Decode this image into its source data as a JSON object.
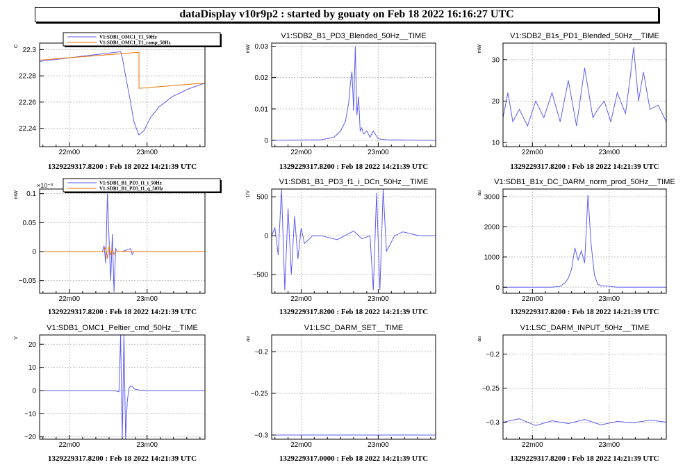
{
  "title": "dataDisplay v10r9p2 : started by gouaty on Feb 18 2022 16:16:27 UTC",
  "colors": {
    "blue": "#5b5bf0",
    "orange": "#f07000",
    "grid": "#bdbdbd"
  },
  "chart_data": [
    {
      "type": "line",
      "title": "",
      "ylabel": "C",
      "footer": "1329229317.8200 : Feb 18 2022 14:21:39 UTC",
      "xticks": [
        "22m00",
        "23m00"
      ],
      "ylim": [
        22.226,
        22.305
      ],
      "yticks": [
        22.24,
        22.26,
        22.28,
        22.3
      ],
      "ytick_labels": [
        "22.24",
        "22.26",
        "22.28",
        "22.3"
      ],
      "legend": [
        "V1:SDB1_OMC1_T1_50Hz",
        "V1:SDB1_OMC1_T1_ramp_50Hz"
      ],
      "series": [
        {
          "name": "V1:SDB1_OMC1_T1_50Hz",
          "color": "blue",
          "x": [
            0,
            0.49,
            0.5,
            0.52,
            0.55,
            0.57,
            0.6,
            0.63,
            0.67,
            0.72,
            0.8,
            0.9,
            1
          ],
          "y": [
            22.291,
            22.2985,
            22.294,
            22.28,
            22.26,
            22.245,
            22.235,
            22.238,
            22.248,
            22.256,
            22.264,
            22.27,
            22.2745
          ]
        },
        {
          "name": "V1:SDB1_OMC1_T1_ramp_50Hz",
          "color": "orange",
          "x": [
            0,
            0.6,
            0.601,
            0.6011,
            1
          ],
          "y": [
            22.292,
            22.298,
            22.298,
            22.2705,
            22.2745
          ]
        }
      ]
    },
    {
      "type": "line",
      "title": "V1:SDB2_B1_PD3_Blended_50Hz__TIME",
      "ylabel": "mW",
      "footer": "1329229317.8200 : Feb 18 2022 14:21:39 UTC",
      "xticks": [
        "22m00",
        "23m00"
      ],
      "ylim": [
        -0.002,
        0.031
      ],
      "yticks": [
        0,
        0.01,
        0.02,
        0.03
      ],
      "ytick_labels": [
        "0",
        "0.01",
        "0.02",
        "0.03"
      ],
      "series": [
        {
          "name": "",
          "color": "blue",
          "x": [
            0,
            0.3,
            0.38,
            0.42,
            0.45,
            0.47,
            0.48,
            0.49,
            0.5,
            0.51,
            0.52,
            0.53,
            0.54,
            0.55,
            0.56,
            0.58,
            0.6,
            0.62,
            0.65,
            0.7,
            1
          ],
          "y": [
            0,
            0.0002,
            0.001,
            0.003,
            0.006,
            0.012,
            0.018,
            0.022,
            0.0095,
            0.03,
            0.008,
            0.014,
            0.003,
            0.004,
            0.002,
            0.003,
            0.001,
            0.003,
            0.0005,
            0.0002,
            0
          ]
        }
      ]
    },
    {
      "type": "line",
      "title": "V1:SDB2_B1s_PD1_Blended_50Hz__TIME",
      "ylabel": "mW",
      "footer": "1329229317.8200 : Feb 18 2022 14:21:39 UTC",
      "xticks": [
        "22m00",
        "23m00"
      ],
      "ylim": [
        9,
        34
      ],
      "yticks": [
        10,
        20,
        30
      ],
      "ytick_labels": [
        "10",
        "20",
        "30"
      ],
      "series": [
        {
          "name": "",
          "color": "blue",
          "x": [
            0,
            0.03,
            0.06,
            0.1,
            0.15,
            0.2,
            0.25,
            0.3,
            0.35,
            0.4,
            0.45,
            0.5,
            0.55,
            0.58,
            0.62,
            0.66,
            0.7,
            0.75,
            0.78,
            0.8,
            0.83,
            0.86,
            0.9,
            0.95,
            1
          ],
          "y": [
            16,
            22,
            15,
            18,
            14,
            20,
            16,
            22,
            15,
            25,
            14,
            28,
            16,
            18,
            20,
            15,
            22,
            17,
            26,
            33,
            20,
            27,
            18,
            19,
            15
          ]
        }
      ]
    },
    {
      "type": "line",
      "title": "",
      "ylabel": "mW",
      "yexponent": "×10⁻³",
      "footer": "1329229317.8200 : Feb 18 2022 14:21:39 UTC",
      "xticks": [
        "22m00",
        "23m00"
      ],
      "ylim": [
        -0.072,
        0.108
      ],
      "yticks": [
        -0.05,
        0,
        0.05,
        0.1
      ],
      "ytick_labels": [
        "−0.05",
        "0",
        "0.05",
        "0.1"
      ],
      "legend": [
        "V1:SDB1_B1_PD3_f1_i_50Hz",
        "V1:SDB1_B1_PD3_f1_q_50Hz"
      ],
      "series": [
        {
          "name": "V1:SDB1_B1_PD3_f1_i_50Hz",
          "color": "blue",
          "x": [
            0,
            0.38,
            0.39,
            0.4,
            0.41,
            0.42,
            0.43,
            0.44,
            0.45,
            0.46,
            0.47,
            0.5,
            0.55,
            0.56,
            0.57,
            1
          ],
          "y": [
            0,
            0,
            0.01,
            -0.02,
            0.1,
            0.02,
            -0.05,
            0.03,
            -0.07,
            0.005,
            0,
            0,
            0.005,
            -0.005,
            0,
            0
          ]
        },
        {
          "name": "V1:SDB1_B1_PD3_f1_q_50Hz",
          "color": "orange",
          "x": [
            0,
            0.39,
            0.4,
            0.41,
            0.42,
            0.43,
            0.44,
            0.45,
            0.46,
            1
          ],
          "y": [
            0,
            0,
            0.008,
            -0.012,
            0.01,
            -0.006,
            0.004,
            -0.005,
            0,
            0
          ]
        }
      ]
    },
    {
      "type": "line",
      "title": "V1:SDB1_B1_PD3_f1_i_DCn_50Hz__TIME",
      "ylabel": "1/V",
      "footer": "1329229317.8200 : Feb 18 2022 14:21:39 UTC",
      "xticks": [
        "22m00",
        "23m00"
      ],
      "ylim": [
        -740,
        600
      ],
      "yticks": [
        -500,
        0,
        500
      ],
      "ytick_labels": [
        "−500",
        "0",
        "500"
      ],
      "series": [
        {
          "name": "",
          "color": "blue",
          "x": [
            0,
            0.02,
            0.04,
            0.06,
            0.08,
            0.1,
            0.12,
            0.14,
            0.16,
            0.18,
            0.2,
            0.25,
            0.3,
            0.4,
            0.5,
            0.55,
            0.6,
            0.62,
            0.64,
            0.66,
            0.68,
            0.7,
            0.75,
            0.8,
            0.9,
            1
          ],
          "y": [
            0,
            100,
            -250,
            600,
            -700,
            350,
            -500,
            250,
            -300,
            100,
            -100,
            0,
            0,
            -50,
            60,
            -40,
            0,
            -700,
            550,
            -700,
            600,
            -200,
            0,
            50,
            0,
            0
          ]
        }
      ]
    },
    {
      "type": "line",
      "title": "V1:SDB1_B1x_DC_DARM_norm_prod_50Hz__TIME",
      "ylabel": "au",
      "footer": "1329229317.8200 : Feb 18 2022 14:21:39 UTC",
      "xticks": [
        "22m00",
        "23m00"
      ],
      "ylim": [
        -200,
        3250
      ],
      "yticks": [
        0,
        1000,
        2000,
        3000
      ],
      "ytick_labels": [
        "0",
        "1000",
        "2000",
        "3000"
      ],
      "series": [
        {
          "name": "",
          "color": "blue",
          "x": [
            0,
            0.3,
            0.35,
            0.38,
            0.4,
            0.42,
            0.44,
            0.46,
            0.48,
            0.5,
            0.52,
            0.54,
            0.56,
            0.58,
            0.6,
            0.65,
            0.7,
            1
          ],
          "y": [
            0,
            0,
            30,
            150,
            300,
            600,
            1300,
            900,
            1200,
            800,
            3050,
            1400,
            400,
            100,
            50,
            30,
            0,
            0
          ]
        }
      ]
    },
    {
      "type": "line",
      "title": "V1:SDB1_OMC1_Peltier_cmd_50Hz__TIME",
      "ylabel": "V",
      "footer": "1329229317.8200 : Feb 18 2022 14:21:39 UTC",
      "xticks": [
        "22m00",
        "23m00"
      ],
      "ylim": [
        -21,
        24
      ],
      "yticks": [
        -20,
        -10,
        0,
        10,
        20
      ],
      "ytick_labels": [
        "−20",
        "−10",
        "0",
        "10",
        "20"
      ],
      "series": [
        {
          "name": "",
          "color": "blue",
          "x": [
            0,
            0.45,
            0.48,
            0.49,
            0.5,
            0.51,
            0.52,
            0.53,
            0.54,
            0.55,
            0.56,
            0.57,
            0.58,
            0.6,
            0.65,
            0.7,
            1
          ],
          "y": [
            0,
            0,
            -0.5,
            24,
            -21,
            24,
            -21,
            -5,
            1,
            2,
            1.8,
            1,
            0.5,
            0.2,
            0,
            0,
            0
          ]
        }
      ]
    },
    {
      "type": "line",
      "title": "V1:LSC_DARM_SET__TIME",
      "ylabel": "au",
      "footer": "1329229317.0000 : Feb 18 2022 14:21:39 UTC",
      "xticks": [
        "22m00",
        "23m00"
      ],
      "ylim": [
        -0.305,
        -0.18
      ],
      "yticks": [
        -0.3,
        -0.25,
        -0.2
      ],
      "ytick_labels": [
        "−0.3",
        "−0.25",
        "−0.2"
      ],
      "series": [
        {
          "name": "",
          "color": "blue",
          "x": [
            0,
            1
          ],
          "y": [
            -0.3,
            -0.3
          ]
        }
      ]
    },
    {
      "type": "line",
      "title": "V1:LSC_DARM_INPUT_50Hz__TIME",
      "ylabel": "au",
      "footer": "1329229317.8200 : Feb 18 2022 14:21:39 UTC",
      "xticks": [
        "22m00",
        "23m00"
      ],
      "ylim": [
        -0.325,
        -0.172
      ],
      "yticks": [
        -0.3,
        -0.25,
        -0.2
      ],
      "ytick_labels": [
        "−0.3",
        "−0.25",
        "−0.2"
      ],
      "series": [
        {
          "name": "",
          "color": "blue",
          "x": [
            0,
            0.1,
            0.2,
            0.3,
            0.4,
            0.5,
            0.6,
            0.7,
            0.8,
            0.9,
            1
          ],
          "y": [
            -0.3,
            -0.295,
            -0.305,
            -0.298,
            -0.302,
            -0.296,
            -0.304,
            -0.299,
            -0.301,
            -0.297,
            -0.3
          ]
        }
      ]
    }
  ]
}
